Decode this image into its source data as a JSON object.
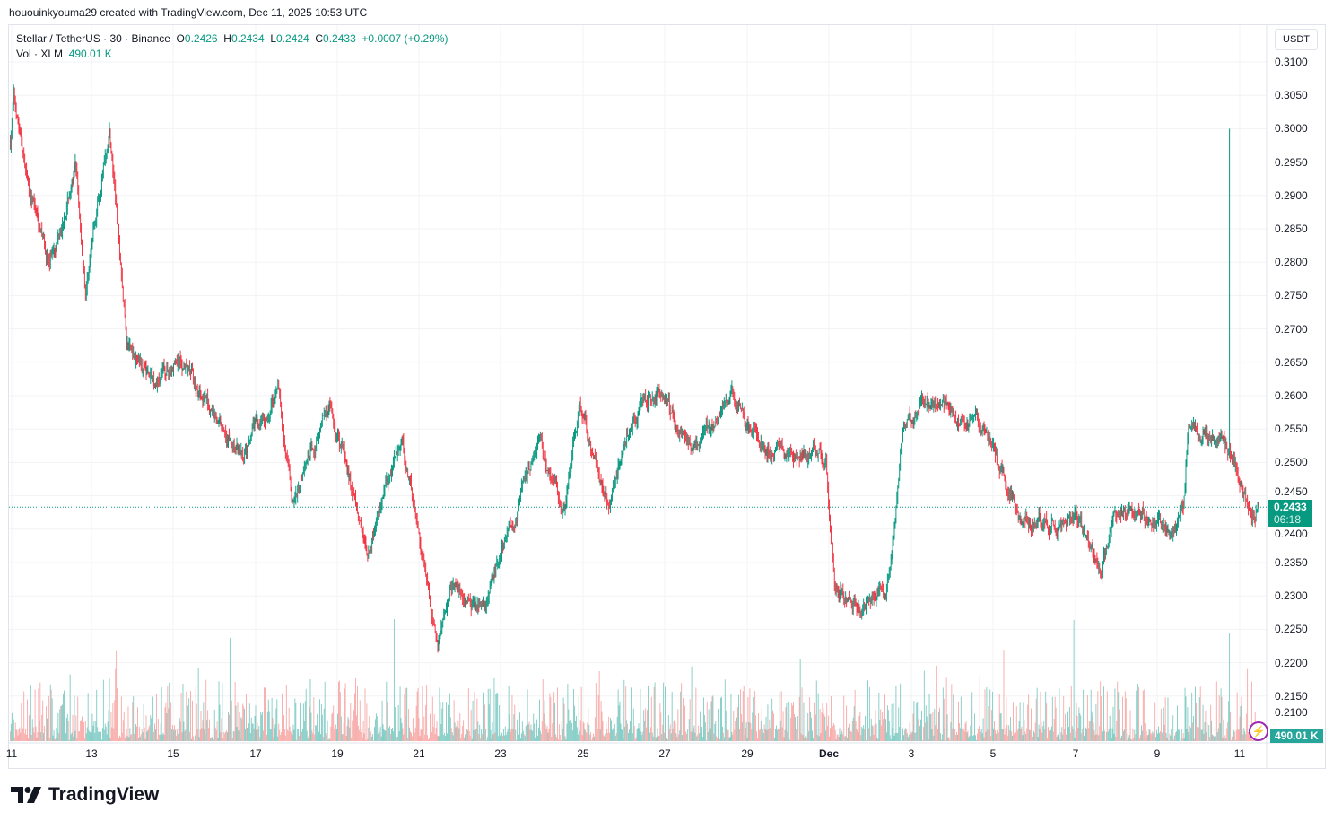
{
  "header": {
    "text": "hououinkyouma29 created with TradingView.com, Dec 11, 2025 10:53 UTC"
  },
  "legend": {
    "symbol": "Stellar / TetherUS · 30 · Binance",
    "o_label": "O",
    "o": "0.2426",
    "h_label": "H",
    "h": "0.2434",
    "l_label": "L",
    "l": "0.2424",
    "c_label": "C",
    "c": "0.2433",
    "change": "+0.0007 (+0.29%)",
    "vol_label": "Vol · XLM",
    "vol": "490.01 K"
  },
  "currency": "USDT",
  "price_tag": {
    "price": "0.2433",
    "countdown": "06:18"
  },
  "volume_tag": "490.01 K",
  "brand": "TradingView",
  "colors": {
    "up": "#089981",
    "down": "#f23645",
    "vol_up": "#80cbc4",
    "vol_down": "#f7a9a7"
  },
  "chart_data": {
    "type": "candlestick",
    "interval_minutes": 30,
    "y_ticks": [
      "0.3100",
      "0.3050",
      "0.3000",
      "0.2950",
      "0.2900",
      "0.2850",
      "0.2800",
      "0.2750",
      "0.2700",
      "0.2650",
      "0.2600",
      "0.2550",
      "0.2500",
      "0.2450",
      "0.2400",
      "0.2350",
      "0.2300",
      "0.2250",
      "0.2200",
      "0.2150",
      "0.2100"
    ],
    "x_ticks": [
      "11",
      "13",
      "15",
      "17",
      "19",
      "21",
      "23",
      "25",
      "27",
      "29",
      "Dec",
      "3",
      "5",
      "7",
      "9",
      "11"
    ],
    "ylim": [
      0.21,
      0.31
    ],
    "xlim": [
      "2025-11-11T00:00Z",
      "2025-12-11T11:00Z"
    ],
    "grid": true,
    "last_close": 0.2433,
    "spike": {
      "t": "2025-12-10T17:00Z",
      "high": 0.3
    },
    "path": [
      [
        "2025-11-11T00:00Z",
        0.298
      ],
      [
        "2025-11-11T02:00Z",
        0.305
      ],
      [
        "2025-11-11T10:00Z",
        0.292
      ],
      [
        "2025-11-11T23:00Z",
        0.28
      ],
      [
        "2025-11-12T14:00Z",
        0.294
      ],
      [
        "2025-11-12T20:00Z",
        0.276
      ],
      [
        "2025-11-13T04:00Z",
        0.291
      ],
      [
        "2025-11-13T10:00Z",
        0.3
      ],
      [
        "2025-11-13T20:00Z",
        0.268
      ],
      [
        "2025-11-14T12:00Z",
        0.262
      ],
      [
        "2025-11-15T03:00Z",
        0.265
      ],
      [
        "2025-11-16T00:00Z",
        0.257
      ],
      [
        "2025-11-16T16:00Z",
        0.251
      ],
      [
        "2025-11-17T13:00Z",
        0.261
      ],
      [
        "2025-11-17T21:00Z",
        0.244
      ],
      [
        "2025-11-18T19:00Z",
        0.259
      ],
      [
        "2025-11-19T17:00Z",
        0.236
      ],
      [
        "2025-11-20T13:00Z",
        0.254
      ],
      [
        "2025-11-21T01:00Z",
        0.236
      ],
      [
        "2025-11-21T10:00Z",
        0.222
      ],
      [
        "2025-11-21T17:00Z",
        0.232
      ],
      [
        "2025-11-22T13:00Z",
        0.228
      ],
      [
        "2025-11-23T21:00Z",
        0.253
      ],
      [
        "2025-11-24T12:00Z",
        0.242
      ],
      [
        "2025-11-24T21:00Z",
        0.259
      ],
      [
        "2025-11-25T14:00Z",
        0.243
      ],
      [
        "2025-11-26T01:00Z",
        0.255
      ],
      [
        "2025-11-26T19:00Z",
        0.261
      ],
      [
        "2025-11-27T14:00Z",
        0.252
      ],
      [
        "2025-11-28T14:00Z",
        0.26
      ],
      [
        "2025-11-29T08:00Z",
        0.252
      ],
      [
        "2025-11-30T21:00Z",
        0.251
      ],
      [
        "2025-12-01T02:00Z",
        0.232
      ],
      [
        "2025-12-01T17:00Z",
        0.228
      ],
      [
        "2025-12-02T10:00Z",
        0.233
      ],
      [
        "2025-12-02T18:00Z",
        0.255
      ],
      [
        "2025-12-03T05:00Z",
        0.259
      ],
      [
        "2025-12-03T22:00Z",
        0.258
      ],
      [
        "2025-12-04T19:00Z",
        0.254
      ],
      [
        "2025-12-05T17:00Z",
        0.241
      ],
      [
        "2025-12-07T00:00Z",
        0.241
      ],
      [
        "2025-12-07T14:00Z",
        0.233
      ],
      [
        "2025-12-07T22:00Z",
        0.243
      ],
      [
        "2025-12-08T14:00Z",
        0.243
      ],
      [
        "2025-12-09T05:00Z",
        0.239
      ],
      [
        "2025-12-09T14:00Z",
        0.243
      ],
      [
        "2025-12-09T17:00Z",
        0.256
      ],
      [
        "2025-12-10T17:00Z",
        0.252
      ],
      [
        "2025-12-11T01:00Z",
        0.246
      ],
      [
        "2025-12-11T06:00Z",
        0.241
      ],
      [
        "2025-12-11T10:00Z",
        0.2433
      ]
    ]
  }
}
